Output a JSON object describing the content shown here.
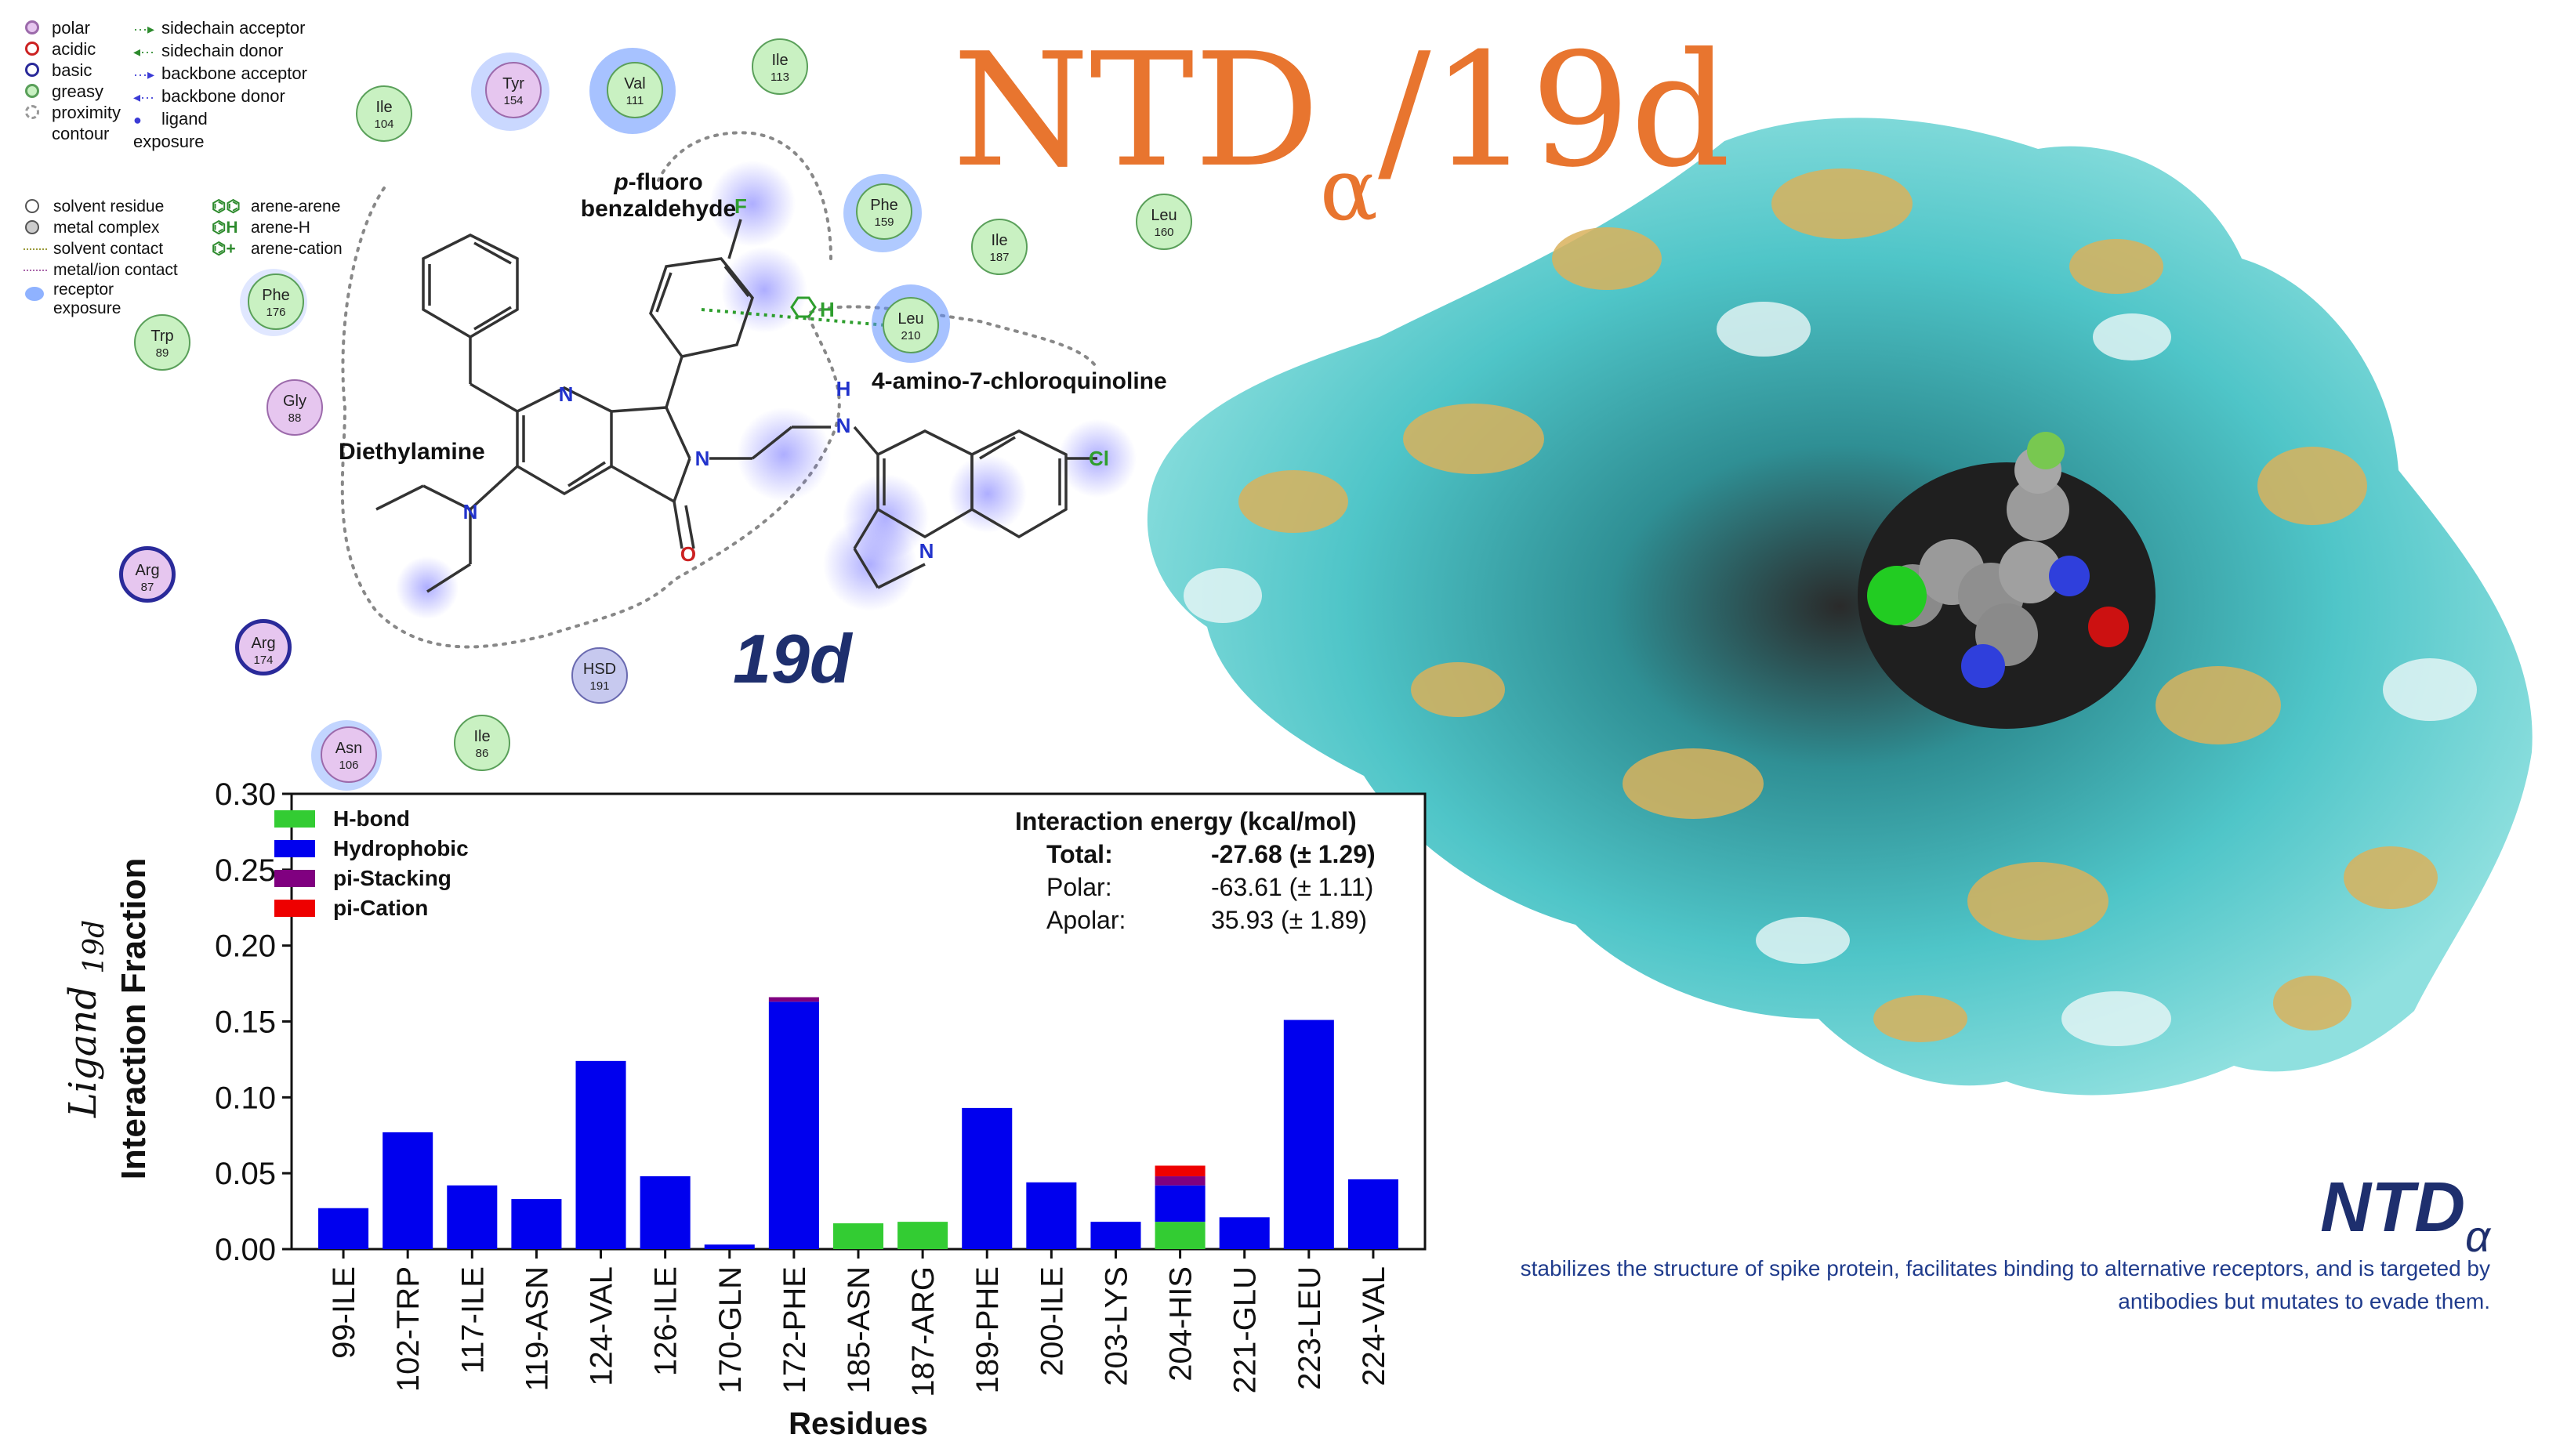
{
  "legend_types": [
    {
      "label": "polar",
      "fill": "#e6c6ef",
      "border": "#9c6aab",
      "icon": "polar-circle-icon"
    },
    {
      "label": "acidic",
      "fill": "#ffffff",
      "border": "#cc2222",
      "icon": "acidic-circle-icon"
    },
    {
      "label": "basic",
      "fill": "#ffffff",
      "border": "#2a2a9a",
      "icon": "basic-circle-icon"
    },
    {
      "label": "greasy",
      "fill": "#c9f1c2",
      "border": "#5aa05a",
      "icon": "greasy-circle-icon"
    },
    {
      "label": "proximity contour",
      "fill": "#ffffff",
      "border": "#999999",
      "icon": "proximity-contour-icon"
    }
  ],
  "legend_contacts": [
    {
      "label": "sidechain acceptor",
      "glyph": "···▸"
    },
    {
      "label": "sidechain donor",
      "glyph": "◂···"
    },
    {
      "label": "backbone acceptor",
      "glyph": "···▸"
    },
    {
      "label": "backbone donor",
      "glyph": "◂···"
    },
    {
      "label": "ligand exposure",
      "glyph": "●"
    }
  ],
  "legend_misc": [
    "solvent residue",
    "metal complex",
    "solvent contact",
    "metal/ion contact",
    "receptor exposure"
  ],
  "legend_arene": [
    {
      "glyph": "⌬⌬",
      "label": "arene-arene"
    },
    {
      "glyph": "⌬H",
      "label": "arene-H"
    },
    {
      "glyph": "⌬+",
      "label": "arene-cation"
    }
  ],
  "residues": [
    {
      "name": "Ile",
      "num": "104",
      "type": "greasy"
    },
    {
      "name": "Tyr",
      "num": "154",
      "type": "polar"
    },
    {
      "name": "Val",
      "num": "111",
      "type": "greasy"
    },
    {
      "name": "Ile",
      "num": "113",
      "type": "greasy"
    },
    {
      "name": "Phe",
      "num": "159",
      "type": "greasy"
    },
    {
      "name": "Ile",
      "num": "187",
      "type": "greasy"
    },
    {
      "name": "Leu",
      "num": "160",
      "type": "greasy"
    },
    {
      "name": "Leu",
      "num": "210",
      "type": "greasy"
    },
    {
      "name": "Phe",
      "num": "176",
      "type": "greasy"
    },
    {
      "name": "Trp",
      "num": "89",
      "type": "greasy"
    },
    {
      "name": "Gly",
      "num": "88",
      "type": "polar"
    },
    {
      "name": "Arg",
      "num": "87",
      "type": "basic"
    },
    {
      "name": "Arg",
      "num": "174",
      "type": "basic"
    },
    {
      "name": "HSD",
      "num": "191",
      "type": "hsd"
    },
    {
      "name": "Asn",
      "num": "106",
      "type": "polar"
    },
    {
      "name": "Ile",
      "num": "86",
      "type": "greasy"
    }
  ],
  "diagram_labels": {
    "fragment_fluoro_prefix": "p",
    "fragment_fluoro_rest": "-fluoro",
    "fragment_fluoro_line2": "benzaldehyde",
    "fragment_quinoline": "4-amino-7-chloroquinoline",
    "fragment_amine": "Diethylamine",
    "ligand_name": "19d",
    "atoms": {
      "F": "F",
      "N": "N",
      "O": "O",
      "Cl": "Cl",
      "H": "H"
    }
  },
  "title": {
    "main": "NTD",
    "sub": "α",
    "ligand": "/19d"
  },
  "protein_label": {
    "main": "NTD",
    "sub": "α"
  },
  "caption": "stabilizes the structure of spike protein, facilitates binding to alternative receptors, and is targeted by antibodies but mutates to evade them.",
  "energy": {
    "heading": "Interaction energy (kcal/mol)",
    "rows": [
      {
        "label": "Total:",
        "value": "-27.68 (± 1.29)",
        "bold": true
      },
      {
        "label": "Polar:",
        "value": "-63.61 (± 1.11)",
        "bold": false
      },
      {
        "label": "Apolar:",
        "value": "35.93 (± 1.89)",
        "bold": false
      }
    ]
  },
  "chart_data": {
    "type": "bar",
    "stacked": true,
    "xlabel": "Residues",
    "ylabel_line1": "Ligand",
    "ylabel_ligand": "19d",
    "ylabel_line2": "Interaction Fraction",
    "ylim": [
      0,
      0.3
    ],
    "yticks": [
      "0.00",
      "0.05",
      "0.10",
      "0.15",
      "0.20",
      "0.25",
      "0.30"
    ],
    "legend_position": "top-left",
    "categories": [
      "99-ILE",
      "102-TRP",
      "117-ILE",
      "119-ASN",
      "124-VAL",
      "126-ILE",
      "170-GLN",
      "172-PHE",
      "185-ASN",
      "187-ARG",
      "189-PHE",
      "200-ILE",
      "203-LYS",
      "204-HIS",
      "221-GLU",
      "223-LEU",
      "224-VAL"
    ],
    "series": [
      {
        "name": "H-bond",
        "color": "#33cc33",
        "values": [
          0,
          0,
          0,
          0,
          0,
          0,
          0,
          0,
          0.017,
          0.018,
          0,
          0,
          0,
          0.018,
          0,
          0,
          0
        ]
      },
      {
        "name": "Hydrophobic",
        "color": "#0000ee",
        "values": [
          0.027,
          0.077,
          0.042,
          0.033,
          0.124,
          0.048,
          0.003,
          0.163,
          0,
          0,
          0.093,
          0.044,
          0.018,
          0.024,
          0.021,
          0.151,
          0.046
        ]
      },
      {
        "name": "pi-Stacking",
        "color": "#800080",
        "values": [
          0,
          0,
          0,
          0,
          0,
          0,
          0,
          0.003,
          0,
          0,
          0,
          0,
          0,
          0.006,
          0,
          0,
          0
        ]
      },
      {
        "name": "pi-Cation",
        "color": "#ee0000",
        "values": [
          0,
          0,
          0,
          0,
          0,
          0,
          0,
          0,
          0,
          0,
          0,
          0,
          0,
          0.007,
          0,
          0,
          0
        ]
      }
    ]
  }
}
